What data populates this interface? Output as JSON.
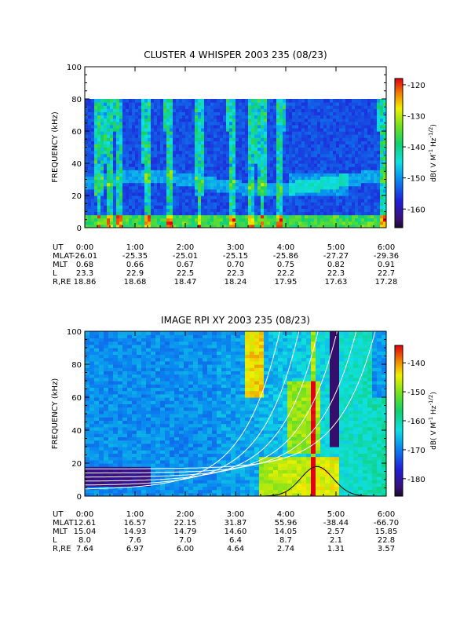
{
  "chart_data": [
    {
      "type": "heatmap",
      "title": "CLUSTER 4 WHISPER 2003 235 (08/23)",
      "ylabel": "FREQUENCY (kHz)",
      "ylim": [
        0,
        100
      ],
      "yticks": [
        0,
        20,
        40,
        60,
        80,
        100
      ],
      "xlim": [
        0,
        6
      ],
      "xticks": [
        "0:00",
        "1:00",
        "2:00",
        "3:00",
        "4:00",
        "5:00",
        "6:00"
      ],
      "data_freq_max": 80,
      "colorbar": {
        "label": "dB( V M⁻¹ Hz⁻¹ᐟ²)",
        "label_main": "dB( V M",
        "label_sup1": "-1",
        "label_mid": " Hz",
        "label_sup2": "-1/2",
        "label_end": ")",
        "range": [
          -166,
          -118
        ],
        "ticks": [
          -120,
          -130,
          -140,
          -150,
          -160
        ]
      },
      "ephemeris": {
        "labels": [
          "UT",
          "MLAT",
          "MLT",
          "L",
          "R,RE"
        ],
        "rows": [
          [
            "0:00",
            "1:00",
            "2:00",
            "3:00",
            "4:00",
            "5:00",
            "6:00"
          ],
          [
            "-26.01",
            "-25.35",
            "-25.01",
            "-25.15",
            "-25.86",
            "-27.27",
            "-29.36"
          ],
          [
            "0.68",
            "0.66",
            "0.67",
            "0.70",
            "0.75",
            "0.82",
            "0.91"
          ],
          [
            "23.3",
            "22.9",
            "22.5",
            "22.3",
            "22.2",
            "22.3",
            "22.7"
          ],
          [
            "18.86",
            "18.68",
            "18.47",
            "18.24",
            "17.95",
            "17.63",
            "17.28"
          ]
        ]
      }
    },
    {
      "type": "heatmap",
      "title": "IMAGE RPI XY 2003 235 (08/23)",
      "ylabel": "FREQUENCY (kHz)",
      "ylim": [
        0,
        100
      ],
      "yticks": [
        0,
        20,
        40,
        60,
        80,
        100
      ],
      "xlim": [
        0,
        6
      ],
      "xticks": [
        "0:00",
        "1:00",
        "2:00",
        "3:00",
        "4:00",
        "5:00",
        "6:00"
      ],
      "colorbar": {
        "label_main": "dB( V M",
        "label_sup1": "-1",
        "label_mid": " Hz",
        "label_sup2": "-1/2",
        "label_end": ")",
        "range": [
          -186,
          -134
        ],
        "ticks": [
          -140,
          -150,
          -160,
          -170,
          -180
        ]
      },
      "ephemeris": {
        "labels": [
          "UT",
          "MLAT",
          "MLT",
          "L",
          "R,RE"
        ],
        "rows": [
          [
            "0:00",
            "1:00",
            "2:00",
            "3:00",
            "4:00",
            "5:00",
            "6:00"
          ],
          [
            "12.61",
            "16.57",
            "22.15",
            "31.87",
            "55.96",
            "-38.44",
            "-66.70"
          ],
          [
            "15.04",
            "14.93",
            "14.79",
            "14.60",
            "14.05",
            "2.57",
            "15.85"
          ],
          [
            "8.0",
            "7.6",
            "7.0",
            "6.4",
            "8.7",
            "2.1",
            "22.8"
          ],
          [
            "7.64",
            "6.97",
            "6.00",
            "4.64",
            "2.74",
            "1.31",
            "3.57"
          ]
        ]
      }
    }
  ]
}
